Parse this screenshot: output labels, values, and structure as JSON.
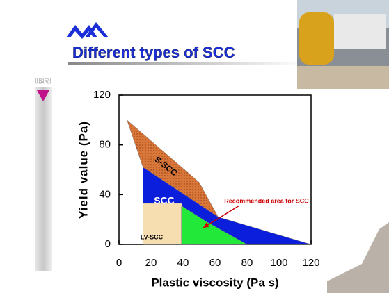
{
  "slide_title": "Different types of SCC",
  "side_label": "IBRI",
  "chart_data": {
    "type": "area",
    "ylabel": "Yield value (Pa)",
    "xlabel": "Plastic viscosity (Pa s)",
    "annotation": "Recommended area for SCC",
    "xlim": [
      0,
      120
    ],
    "ylim": [
      0,
      120
    ],
    "xticks": [
      0,
      20,
      40,
      60,
      80,
      100,
      120
    ],
    "yticks": [
      0,
      40,
      80,
      120
    ],
    "series": [
      {
        "name": "S-SCC",
        "color": "#d9763a",
        "x": [
          5,
          50,
          62,
          15
        ],
        "values": [
          100,
          50,
          22,
          62
        ]
      },
      {
        "name": "SCC",
        "color": "#0a1edc",
        "x": [
          15,
          62,
          120,
          15
        ],
        "values": [
          62,
          22,
          0,
          0
        ]
      },
      {
        "name": "LV-SCC",
        "color": "#f7deb0",
        "x": [
          15,
          39,
          50,
          15
        ],
        "values": [
          33,
          33,
          0,
          0
        ]
      },
      {
        "name": "Recommended area for SCC",
        "color": "#22e83a",
        "x": [
          39,
          55,
          80,
          39
        ],
        "values": [
          31,
          18,
          0,
          0
        ]
      }
    ]
  }
}
